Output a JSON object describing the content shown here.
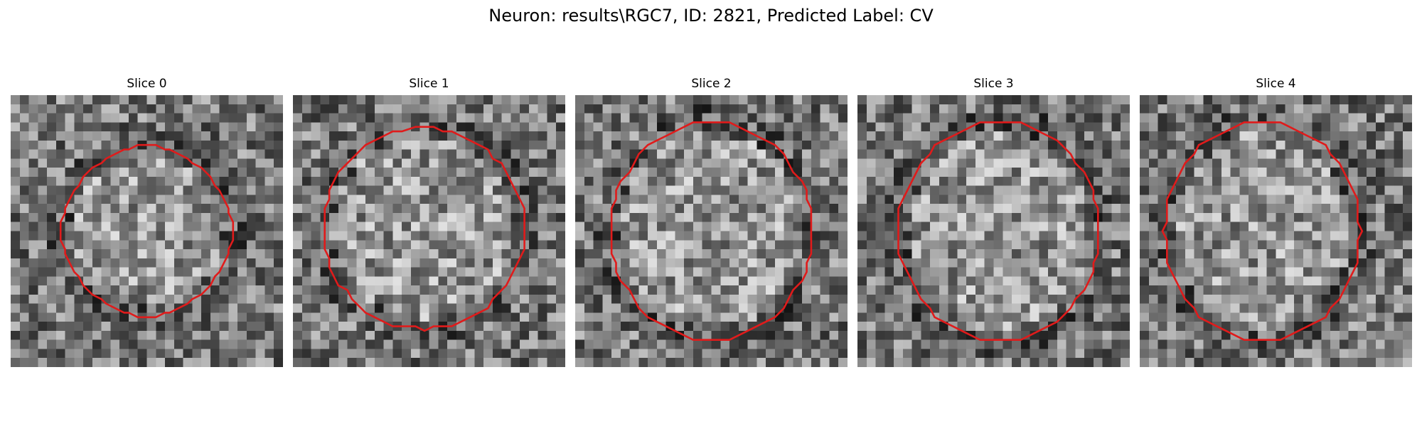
{
  "figure": {
    "title": "Neuron: results\\RGC7, ID: 2821, Predicted Label: CV"
  },
  "panels": [
    {
      "title": "Slice 0",
      "contour": [
        0.5,
        0.5,
        0.31,
        0.31
      ]
    },
    {
      "title": "Slice 1",
      "contour": [
        0.48,
        0.49,
        0.37,
        0.37
      ]
    },
    {
      "title": "Slice 2",
      "contour": [
        0.5,
        0.5,
        0.37,
        0.4
      ]
    },
    {
      "title": "Slice 3",
      "contour": [
        0.52,
        0.5,
        0.37,
        0.4
      ]
    },
    {
      "title": "Slice 4",
      "contour": [
        0.45,
        0.5,
        0.36,
        0.4
      ]
    }
  ],
  "style": {
    "contour_color": "#e01b1b"
  }
}
